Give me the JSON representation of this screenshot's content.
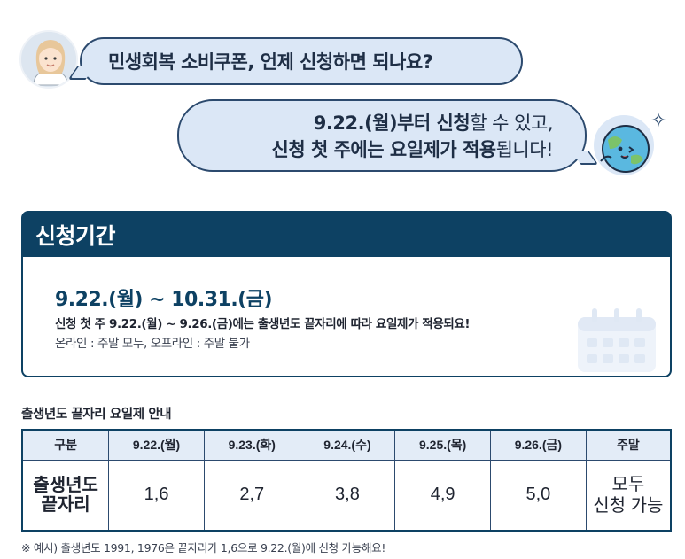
{
  "chat": {
    "question": "민생회복 소비쿠폰, 언제 신청하면 되나요?",
    "answer_line1_bold": "9.22.(월)부터 신청",
    "answer_line1_rest": "할 수 있고,",
    "answer_line2_bold1": "신청 첫 주에는 요일제가 적용",
    "answer_line2_rest": "됩니다!"
  },
  "period": {
    "title": "신청기간",
    "range": "9.22.(월) ~ 10.31.(금)",
    "note": "신청 첫 주 9.22.(월) ~ 9.26.(금)에는 출생년도 끝자리에 따라 요일제가 적용되요!",
    "sub": "온라인 : 주말 모두, 오프라인 : 주말 불가"
  },
  "table": {
    "title": "출생년도 끝자리 요일제 안내",
    "headers": [
      "구분",
      "9.22.(월)",
      "9.23.(화)",
      "9.24.(수)",
      "9.25.(목)",
      "9.26.(금)",
      "주말"
    ],
    "row_head_line1": "출생년도",
    "row_head_line2": "끝자리",
    "cells": [
      "1,6",
      "2,7",
      "3,8",
      "4,9",
      "5,0"
    ],
    "weekend_line1": "모두",
    "weekend_line2": "신청 가능"
  },
  "footnote": "※ 예시) 출생년도 1991, 1976은 끝자리가 1,6으로 9.22.(월)에 신청 가능해요!",
  "colors": {
    "navy": "#0d4163",
    "bubble": "#dbe7f6",
    "table_header": "#e3ecf7"
  },
  "icons": [
    "user-avatar-icon",
    "bot-avatar-icon",
    "sparkle-icon",
    "calendar-icon"
  ]
}
